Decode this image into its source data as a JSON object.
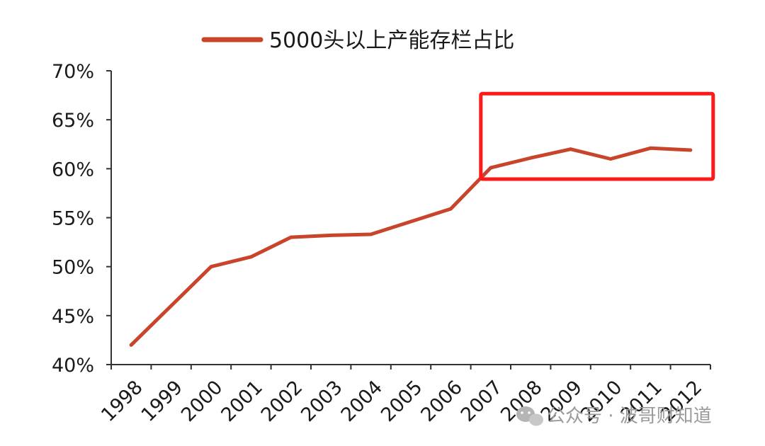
{
  "chart_data": {
    "type": "line",
    "categories": [
      "1998",
      "1999",
      "2000",
      "2001",
      "2002",
      "2003",
      "2004",
      "2005",
      "2006",
      "2007",
      "2008",
      "2009",
      "2010",
      "2011",
      "2012"
    ],
    "series": [
      {
        "name": "5000头以上产能存栏占比",
        "values": [
          42.0,
          46.0,
          50.0,
          51.0,
          53.0,
          53.2,
          53.3,
          54.6,
          55.9,
          60.1,
          61.1,
          62.0,
          61.0,
          62.1,
          61.9
        ]
      }
    ],
    "y_ticks": [
      "40%",
      "45%",
      "50%",
      "55%",
      "60%",
      "65%",
      "70%"
    ],
    "ylim": [
      40,
      70
    ],
    "legend_position": "top-center",
    "grid": false,
    "line_color": "#C8452C",
    "highlight_box_color": "#FF1A1A",
    "highlight_range": [
      "2007",
      "2012"
    ]
  },
  "watermark": {
    "text": "公众号 · 波哥财知道",
    "icon": "wechat-icon"
  }
}
